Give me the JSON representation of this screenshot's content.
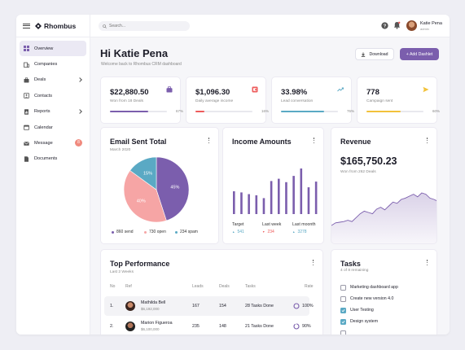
{
  "app": {
    "brand": "Rhombus"
  },
  "sidebar": {
    "items": [
      {
        "label": "Overview",
        "icon": "grid-icon"
      },
      {
        "label": "Companies",
        "icon": "building-icon"
      },
      {
        "label": "Deals",
        "icon": "briefcase-icon"
      },
      {
        "label": "Contacts",
        "icon": "contact-card-icon"
      },
      {
        "label": "Reports",
        "icon": "document-chart-icon"
      },
      {
        "label": "Calendar",
        "icon": "calendar-icon"
      },
      {
        "label": "Message",
        "icon": "mail-icon",
        "badge": "8"
      },
      {
        "label": "Documents",
        "icon": "file-icon"
      }
    ]
  },
  "topbar": {
    "search_placeholder": "Search...",
    "user_name": "Katie Pena",
    "user_role": "admin"
  },
  "header": {
    "greeting": "Hi Katie Pena",
    "subtitle": "Welcome back to Rhombus CRM dashboard",
    "download_label": "Download",
    "add_label": "+ Add Dashlet"
  },
  "stats": [
    {
      "value": "$22,880.50",
      "label": "Won from 18 Deals",
      "pct": "67%",
      "progress": 0.67,
      "color": "#7b5ead",
      "icon": "briefcase-icon"
    },
    {
      "value": "$1,096.30",
      "label": "Daily average income",
      "pct": "16%",
      "progress": 0.16,
      "color": "#ee5b5b",
      "icon": "wallet-icon"
    },
    {
      "value": "33.98%",
      "label": "Lead conversation",
      "pct": "76%",
      "progress": 0.76,
      "color": "#5aa9c4",
      "icon": "trend-up-icon"
    },
    {
      "value": "778",
      "label": "Campaign sent",
      "pct": "60%",
      "progress": 0.6,
      "color": "#f2c23b",
      "icon": "send-icon"
    }
  ],
  "email_card": {
    "title": "Email Sent Total",
    "subtitle": "March 2020",
    "legend": [
      {
        "label": "860 send",
        "color": "#7b5ead"
      },
      {
        "label": "730 open",
        "color": "#f6a5a5"
      },
      {
        "label": "234 spam",
        "color": "#5aa9c4"
      }
    ]
  },
  "income_card": {
    "title": "Income Amounts",
    "stats": [
      {
        "label": "Target",
        "value": "541",
        "color": "#5aa9c4",
        "arrow": "▲"
      },
      {
        "label": "Last week",
        "value": "234",
        "color": "#ee5b5b",
        "arrow": "▼"
      },
      {
        "label": "Last moonth",
        "value": "3278",
        "color": "#5aa9c4",
        "arrow": "▲"
      }
    ]
  },
  "revenue_card": {
    "title": "Revenue",
    "value": "$165,750.23",
    "subtitle": "Won from 262 Deals"
  },
  "performance": {
    "title": "Top Performance",
    "subtitle": "Last 2 Weeks",
    "headers": [
      "No",
      "Ref",
      "Leads",
      "Deals",
      "Tasks",
      "Rate"
    ],
    "rows": [
      {
        "no": "1.",
        "name": "Mathilda Bell",
        "amount": "$6,192,000",
        "leads": "167",
        "deals": "154",
        "tasks": "28 Tasks Done",
        "rate": "100%",
        "rate_value": 1.0
      },
      {
        "no": "2.",
        "name": "Marion Figueroa",
        "amount": "$6,100,000",
        "leads": "235",
        "deals": "148",
        "tasks": "21 Tasks Done",
        "rate": "90%",
        "rate_value": 0.9
      }
    ]
  },
  "tasks": {
    "title": "Tasks",
    "subtitle": "4 of 8 remaining",
    "items": [
      {
        "label": "Marketing dashboard app",
        "checked": false
      },
      {
        "label": "Create new version 4.0",
        "checked": false
      },
      {
        "label": "User Testing",
        "checked": true
      },
      {
        "label": "Design system",
        "checked": true
      }
    ]
  },
  "chart_data": [
    {
      "type": "pie",
      "title": "Email Sent Total",
      "categories": [
        "send",
        "open",
        "spam"
      ],
      "values": [
        45,
        40,
        15
      ],
      "labels": [
        "45%",
        "40%",
        "15%"
      ],
      "colors": [
        "#7b5ead",
        "#f6a5a5",
        "#5aa9c4"
      ]
    },
    {
      "type": "bar",
      "title": "Income Amounts",
      "values": [
        40,
        38,
        35,
        33,
        28,
        58,
        62,
        56,
        67,
        80,
        47,
        57
      ],
      "ylim": [
        0,
        100
      ],
      "color": "#7b5ead"
    },
    {
      "type": "area",
      "title": "Revenue",
      "values": [
        30,
        34,
        35,
        36,
        38,
        36,
        42,
        48,
        52,
        50,
        48,
        55,
        58,
        54,
        60,
        66,
        64,
        70,
        72,
        75,
        78,
        74,
        80,
        78,
        72,
        70,
        67
      ],
      "ylim": [
        0,
        100
      ],
      "color": "#7b5ead"
    }
  ]
}
